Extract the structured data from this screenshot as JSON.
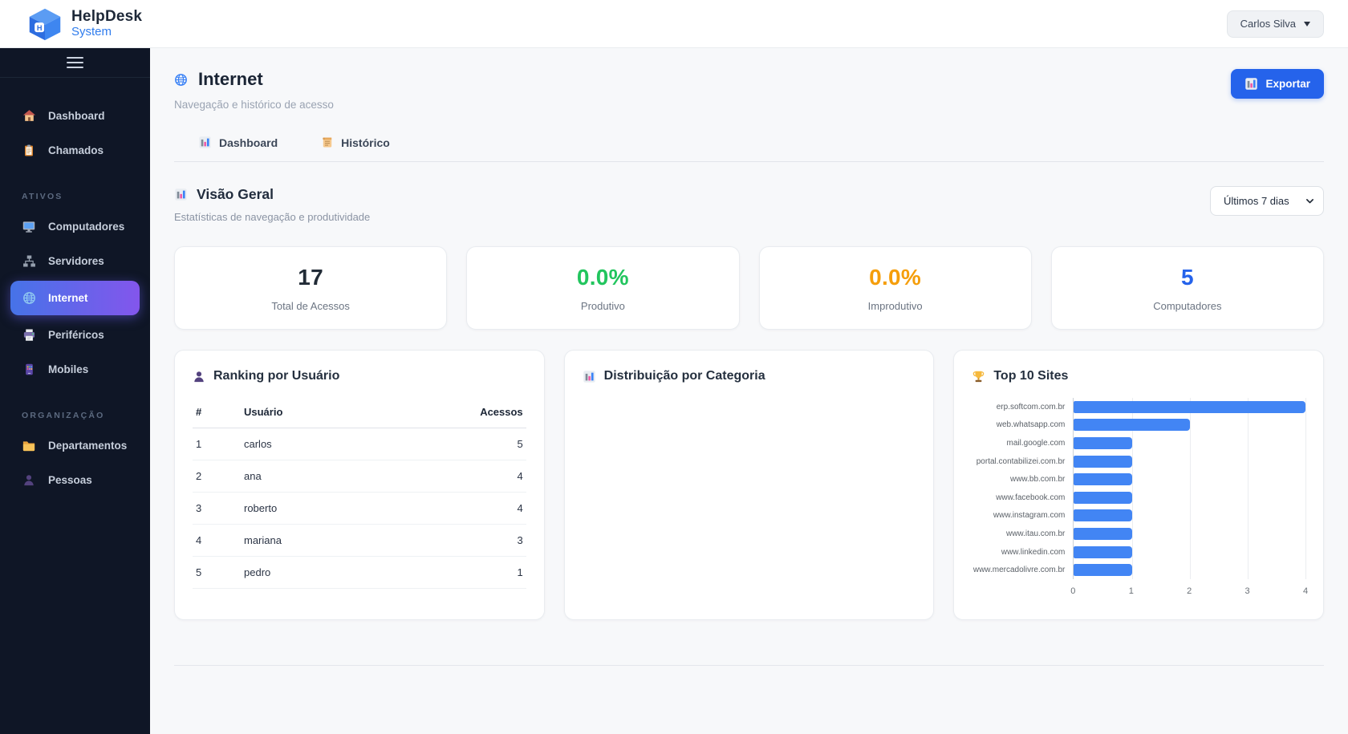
{
  "colors": {
    "accent": "#2563eb",
    "sidebar_bg": "#0f1626",
    "active_gradient_start": "#4673e8",
    "active_gradient_end": "#8356ec",
    "bar_color": "#4285f4",
    "positive": "#22c55e",
    "warning": "#f59e0b"
  },
  "header": {
    "logo": {
      "title": "HelpDesk",
      "subtitle": "System",
      "icon": "cube-logo-icon"
    },
    "user_menu": {
      "label": "Carlos Silva",
      "icon": "caret-down-icon"
    }
  },
  "sidebar": {
    "menu_icon": "hamburger-icon",
    "sections": [
      {
        "label": "",
        "items": [
          {
            "label": "Dashboard",
            "icon": "home-icon",
            "active": false
          },
          {
            "label": "Chamados",
            "icon": "clipboard-icon",
            "active": false
          }
        ]
      },
      {
        "label": "ATIVOS",
        "items": [
          {
            "label": "Computadores",
            "icon": "monitor-icon",
            "active": false
          },
          {
            "label": "Servidores",
            "icon": "network-icon",
            "active": false
          },
          {
            "label": "Internet",
            "icon": "globe-icon",
            "active": true
          },
          {
            "label": "Periféricos",
            "icon": "printer-icon",
            "active": false
          },
          {
            "label": "Mobiles",
            "icon": "mobile-icon",
            "active": false
          }
        ]
      },
      {
        "label": "ORGANIZAÇÃO",
        "items": [
          {
            "label": "Departamentos",
            "icon": "folder-icon",
            "active": false
          },
          {
            "label": "Pessoas",
            "icon": "person-icon",
            "active": false
          }
        ]
      }
    ]
  },
  "page": {
    "title": "Internet",
    "title_icon": "globe-icon",
    "subtitle": "Navegação e histórico de acesso",
    "export_button": {
      "label": "Exportar",
      "icon": "bar-chart-icon"
    }
  },
  "tabs": [
    {
      "label": "Dashboard",
      "icon": "bar-chart-icon",
      "active": true
    },
    {
      "label": "Histórico",
      "icon": "scroll-icon",
      "active": false
    }
  ],
  "overview": {
    "title": "Visão Geral",
    "title_icon": "bar-chart-icon",
    "subtitle": "Estatísticas de navegação e produtividade",
    "period_select": {
      "value": "Últimos 7 dias"
    },
    "stats": [
      {
        "value": "17",
        "label": "Total de Acessos",
        "color": "#212b36"
      },
      {
        "value": "0.0%",
        "label": "Produtivo",
        "color": "#22c55e"
      },
      {
        "value": "0.0%",
        "label": "Improdutivo",
        "color": "#f59e0b"
      },
      {
        "value": "5",
        "label": "Computadores",
        "color": "#2563eb"
      }
    ]
  },
  "panels": {
    "ranking": {
      "title": "Ranking por Usuário",
      "title_icon": "person-icon",
      "table": {
        "columns": [
          "#",
          "Usuário",
          "Acessos"
        ],
        "rows": [
          {
            "rank": "1",
            "user": "carlos",
            "accesses": "5"
          },
          {
            "rank": "2",
            "user": "ana",
            "accesses": "4"
          },
          {
            "rank": "3",
            "user": "roberto",
            "accesses": "4"
          },
          {
            "rank": "4",
            "user": "mariana",
            "accesses": "3"
          },
          {
            "rank": "5",
            "user": "pedro",
            "accesses": "1"
          }
        ]
      }
    },
    "categories": {
      "title": "Distribuição por Categoria",
      "title_icon": "bar-chart-icon"
    },
    "top_sites": {
      "title": "Top 10 Sites",
      "title_icon": "trophy-icon"
    }
  },
  "chart_data": {
    "type": "bar",
    "orientation": "horizontal",
    "title": "Top 10 Sites",
    "categories": [
      "erp.softcom.com.br",
      "web.whatsapp.com",
      "mail.google.com",
      "portal.contabilizei.com.br",
      "www.bb.com.br",
      "www.facebook.com",
      "www.instagram.com",
      "www.itau.com.br",
      "www.linkedin.com",
      "www.mercadolivre.com.br"
    ],
    "values": [
      4,
      2,
      1,
      1,
      1,
      1,
      1,
      1,
      1,
      1
    ],
    "xlabel": "",
    "ylabel": "",
    "xlim": [
      0,
      4
    ],
    "xticks": [
      0,
      1,
      2,
      3,
      4
    ],
    "grid": true,
    "legend": "none",
    "bar_color": "#4285f4"
  }
}
